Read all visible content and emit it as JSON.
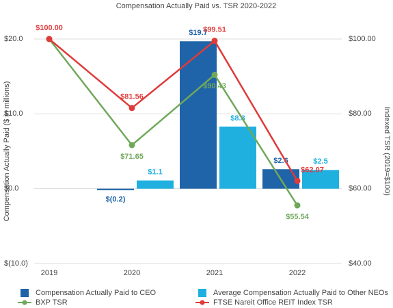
{
  "chart_data": {
    "type": "bar_line",
    "title": "Compensation Actually Paid vs. TSR 2020-2022",
    "y_label": "Compensation Actually Paid ($ in millions)",
    "y2_label": "Indexed TSR (2019=$100)",
    "categories": [
      "2019",
      "2020",
      "2021",
      "2022"
    ],
    "ylim": [
      -10,
      20
    ],
    "yticks": [
      {
        "value": 20,
        "label": "$20.0"
      },
      {
        "value": 10,
        "label": "$10.0"
      },
      {
        "value": 0,
        "label": "$0.0"
      },
      {
        "value": -10,
        "label": "$(10.0)"
      }
    ],
    "y2lim": [
      40,
      100
    ],
    "y2ticks": [
      {
        "value": 100,
        "label": "$100.00"
      },
      {
        "value": 80,
        "label": "$80.00"
      },
      {
        "value": 60,
        "label": "$60.00"
      },
      {
        "value": 40,
        "label": "$40.00"
      }
    ],
    "grid": true,
    "series": [
      {
        "name": "Compensation Actually Paid to CEO",
        "kind": "bar",
        "color": "#1f64a8",
        "values": [
          null,
          -0.2,
          19.7,
          2.6
        ],
        "value_labels": [
          null,
          "$(0.2)",
          "$19.7",
          "$2.6"
        ]
      },
      {
        "name": "Average Compensation Actually Paid to Other NEOs",
        "kind": "bar",
        "color": "#1fb0e0",
        "values": [
          null,
          1.1,
          8.3,
          2.5
        ],
        "value_labels": [
          null,
          "$1.1",
          "$8.3",
          "$2.5"
        ]
      },
      {
        "name": "BXP TSR",
        "kind": "line",
        "axis": "y2",
        "color": "#70a85a",
        "values": [
          100,
          71.65,
          90.43,
          55.54
        ],
        "value_labels": [
          null,
          "$71.65",
          "$90.43",
          "$55.54"
        ]
      },
      {
        "name": "FTSE Nareit Office REIT Index TSR",
        "kind": "line",
        "axis": "y2",
        "color": "#e03a3a",
        "values": [
          100,
          81.56,
          99.51,
          62.07
        ],
        "value_labels": [
          "$100.00",
          "$81.56",
          "$99.51",
          "$62.07"
        ]
      }
    ]
  }
}
